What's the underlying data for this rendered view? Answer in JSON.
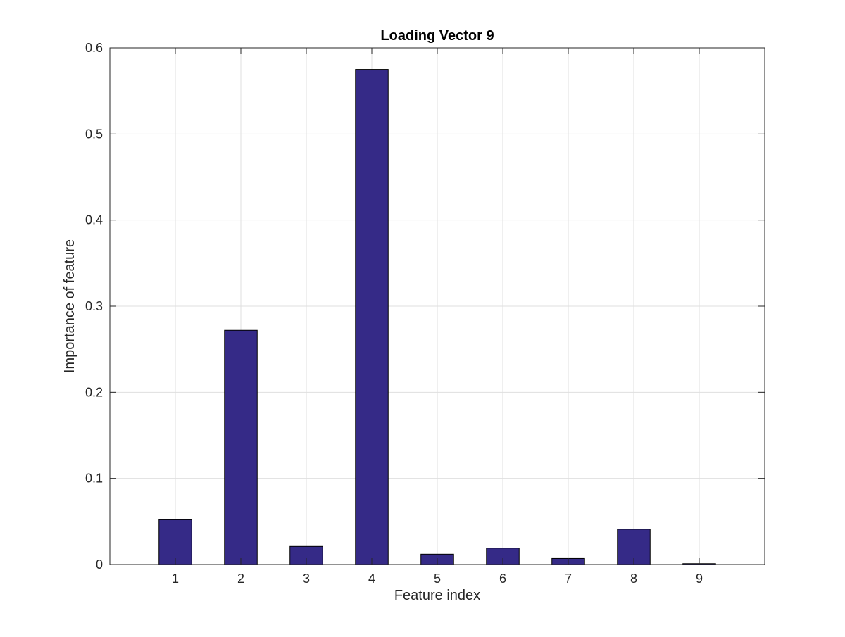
{
  "chart_data": {
    "type": "bar",
    "title": "Loading Vector 9",
    "xlabel": "Feature index",
    "ylabel": "Importance of feature",
    "categories": [
      "1",
      "2",
      "3",
      "4",
      "5",
      "6",
      "7",
      "8",
      "9"
    ],
    "values": [
      0.052,
      0.272,
      0.021,
      0.575,
      0.012,
      0.019,
      0.007,
      0.041,
      0.001
    ],
    "xlim": [
      0,
      10
    ],
    "ylim": [
      0,
      0.6
    ],
    "yticks": [
      0,
      0.1,
      0.2,
      0.3,
      0.4,
      0.5,
      0.6
    ],
    "ytick_labels": [
      "0",
      "0.1",
      "0.2",
      "0.3",
      "0.4",
      "0.5",
      "0.6"
    ],
    "grid": true,
    "legend": "none",
    "colors": {
      "bar_fill": "#352A87",
      "bar_edge": "#000000",
      "grid": "#dfdfdf",
      "axes": "#262626"
    }
  }
}
